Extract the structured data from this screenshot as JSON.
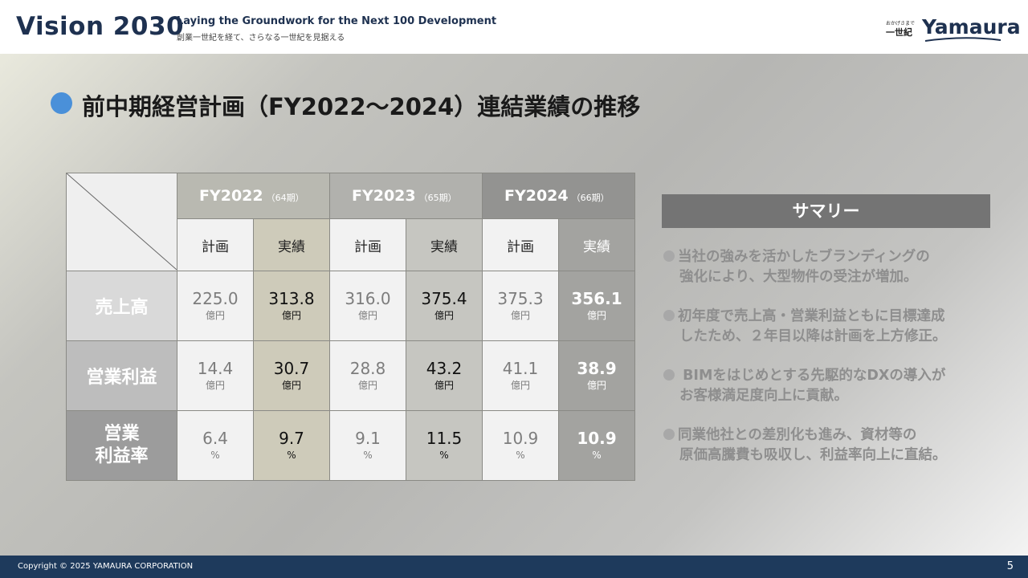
{
  "header": {
    "vision": "Vision 2030",
    "tagline_en": "Laying the Groundwork for the Next 100 Development",
    "tagline_jp": "創業一世紀を経て、さらなる一世紀を見据える",
    "logo_small": "おかげさまで",
    "logo_seiki": "一世紀",
    "logo_main": "Yamaura"
  },
  "title": "前中期経営計画（FY2022～2024）連結業績の推移",
  "colors": {
    "accent_dot": "#4a90d9",
    "footer": "#1e3a5c"
  },
  "table": {
    "years": [
      {
        "label": "FY2022",
        "sub": "（64期）"
      },
      {
        "label": "FY2023",
        "sub": "（65期）"
      },
      {
        "label": "FY2024",
        "sub": "（66期）"
      }
    ],
    "plan_label": "計画",
    "actual_label": "実績",
    "rows": [
      {
        "label": "売上高",
        "unit": "億円",
        "values": [
          "225.0",
          "313.8",
          "316.0",
          "375.4",
          "375.3",
          "356.1"
        ]
      },
      {
        "label": "営業利益",
        "unit": "億円",
        "values": [
          "14.4",
          "30.7",
          "28.8",
          "43.2",
          "41.1",
          "38.9"
        ]
      },
      {
        "label_line1": "営業",
        "label_line2": "利益率",
        "unit": "%",
        "values": [
          "6.4",
          "9.7",
          "9.1",
          "11.5",
          "10.9",
          "10.9"
        ]
      }
    ]
  },
  "summary": {
    "heading": "サマリー",
    "items": [
      {
        "line1": "当社の強みを活かしたブランディングの",
        "line2": "強化により、大型物件の受注が増加。"
      },
      {
        "line1": "初年度で売上高・営業利益ともに目標達成",
        "line2": "したため、２年目以降は計画を上方修正。"
      },
      {
        "line1": " BIMをはじめとする先駆的なDXの導入が",
        "line2": "お客様満足度向上に貢献。"
      },
      {
        "line1": "同業他社との差別化も進み、資材等の",
        "line2": "原価高騰費も吸収し、利益率向上に直結。"
      }
    ]
  },
  "footer": {
    "copyright": "Copyright © 2025 YAMAURA CORPORATION",
    "page": "5"
  }
}
